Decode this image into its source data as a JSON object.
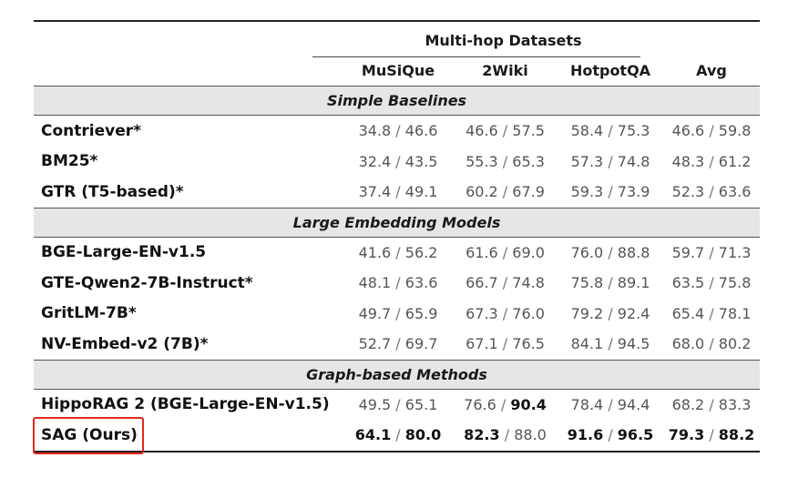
{
  "header": {
    "group_label": "Multi-hop Datasets",
    "columns": [
      "MuSiQue",
      "2Wiki",
      "HotpotQA"
    ],
    "avg_label": "Avg"
  },
  "sections": [
    {
      "title": "Simple Baselines",
      "rows": [
        {
          "model": "Contriever*",
          "cells": [
            [
              "34.8",
              "46.6"
            ],
            [
              "46.6",
              "57.5"
            ],
            [
              "58.4",
              "75.3"
            ],
            [
              "46.6",
              "59.8"
            ]
          ]
        },
        {
          "model": "BM25*",
          "cells": [
            [
              "32.4",
              "43.5"
            ],
            [
              "55.3",
              "65.3"
            ],
            [
              "57.3",
              "74.8"
            ],
            [
              "48.3",
              "61.2"
            ]
          ]
        },
        {
          "model": "GTR (T5-based)*",
          "cells": [
            [
              "37.4",
              "49.1"
            ],
            [
              "60.2",
              "67.9"
            ],
            [
              "59.3",
              "73.9"
            ],
            [
              "52.3",
              "63.6"
            ]
          ]
        }
      ]
    },
    {
      "title": "Large Embedding Models",
      "rows": [
        {
          "model": "BGE-Large-EN-v1.5",
          "cells": [
            [
              "41.6",
              "56.2"
            ],
            [
              "61.6",
              "69.0"
            ],
            [
              "76.0",
              "88.8"
            ],
            [
              "59.7",
              "71.3"
            ]
          ]
        },
        {
          "model": "GTE-Qwen2-7B-Instruct*",
          "cells": [
            [
              "48.1",
              "63.6"
            ],
            [
              "66.7",
              "74.8"
            ],
            [
              "75.8",
              "89.1"
            ],
            [
              "63.5",
              "75.8"
            ]
          ]
        },
        {
          "model": "GritLM-7B*",
          "cells": [
            [
              "49.7",
              "65.9"
            ],
            [
              "67.3",
              "76.0"
            ],
            [
              "79.2",
              "92.4"
            ],
            [
              "65.4",
              "78.1"
            ]
          ]
        },
        {
          "model": "NV-Embed-v2 (7B)*",
          "cells": [
            [
              "52.7",
              "69.7"
            ],
            [
              "67.1",
              "76.5"
            ],
            [
              "84.1",
              "94.5"
            ],
            [
              "68.0",
              "80.2"
            ]
          ]
        }
      ]
    },
    {
      "title": "Graph-based Methods",
      "rows": [
        {
          "model": "HippoRAG 2 (BGE-Large-EN-v1.5)",
          "cells": [
            [
              "49.5",
              "65.1"
            ],
            [
              "76.6",
              "90.4"
            ],
            [
              "78.4",
              "94.4"
            ],
            [
              "68.2",
              "83.3"
            ]
          ]
        },
        {
          "model": "SAG (Ours)",
          "cells": [
            [
              "64.1",
              "80.0"
            ],
            [
              "82.3",
              "88.0"
            ],
            [
              "91.6",
              "96.5"
            ],
            [
              "79.3",
              "88.2"
            ]
          ]
        }
      ]
    }
  ],
  "separator": "/",
  "highlight": {
    "row": "SAG (Ours)",
    "color": "#e3281f"
  }
}
